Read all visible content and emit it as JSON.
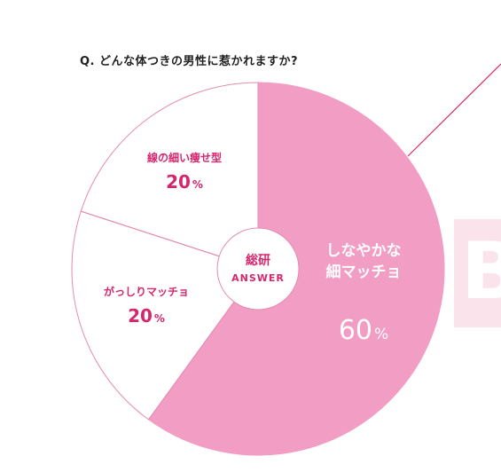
{
  "question": "Q. どんな体つきの男性に惹かれますか?",
  "background_letter": "B",
  "center": {
    "line1": "総研",
    "line2": "ANSWER"
  },
  "colors": {
    "main_slice": "#f29dc4",
    "accent_text": "#d6266e",
    "outline": "#e58bb0",
    "white_text": "#ffffff",
    "bg_panel": "#fbe3ec"
  },
  "chart_data": {
    "type": "pie",
    "start_angle_deg": 0,
    "direction": "clockwise",
    "slices": [
      {
        "name_lines": [
          "しなやかな",
          "細マッチョ"
        ],
        "value": 60,
        "label": "60",
        "unit": "%",
        "highlight": true
      },
      {
        "name_lines": [
          "がっしりマッチョ"
        ],
        "value": 20,
        "label": "20",
        "unit": "%",
        "highlight": false
      },
      {
        "name_lines": [
          "線の細い痩せ型"
        ],
        "value": 20,
        "label": "20",
        "unit": "%",
        "highlight": false
      }
    ]
  }
}
